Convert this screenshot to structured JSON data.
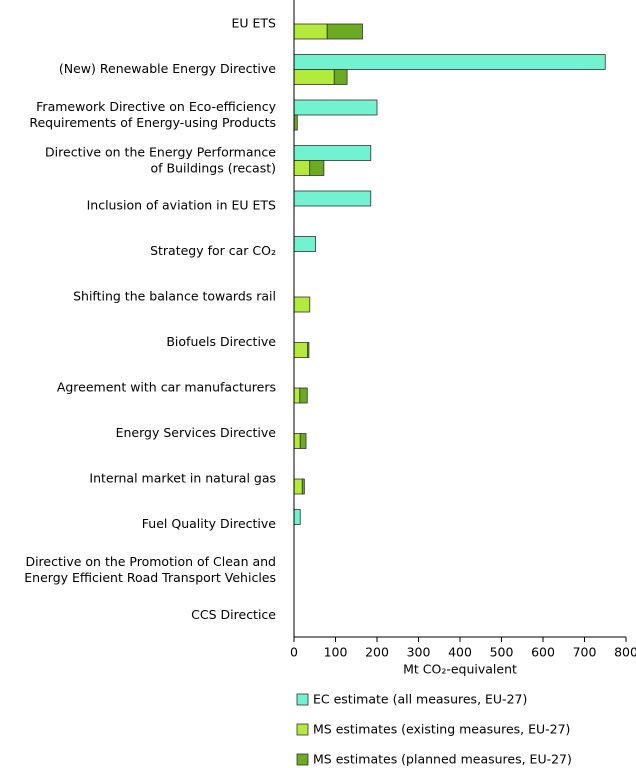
{
  "chart_data": {
    "type": "bar",
    "orientation": "horizontal",
    "categories": [
      "EU ETS",
      "(New) Renewable Energy Directive",
      "Framework Directive on Eco-efficiency\nRequirements of Energy-using Products",
      "Directive on the Energy Performance\nof Buildings (recast)",
      "Inclusion of aviation in EU ETS",
      "Strategy for car CO₂",
      "Shifting the balance towards rail",
      "Biofuels Directive",
      "Agreement with car manufacturers",
      "Energy Services Directive",
      "Internal market in natural gas",
      "Fuel Quality Directive",
      "Directive on the Promotion of Clean and\nEnergy Efficient Road Transport Vehicles",
      "CCS Directice"
    ],
    "series": [
      {
        "name": "EC estimate (all measures, EU-27)",
        "color": "#72f2cf",
        "group": "ec",
        "values": [
          null,
          750,
          200,
          185,
          185,
          52,
          null,
          null,
          null,
          null,
          null,
          15,
          null,
          null
        ]
      },
      {
        "name": "MS estimates (existing measures, EU-27)",
        "color": "#b3ea3c",
        "group": "ms",
        "values": [
          80,
          97,
          null,
          38,
          null,
          null,
          38,
          33,
          14,
          15,
          20,
          null,
          null,
          null
        ]
      },
      {
        "name": "MS estimates (planned measures, EU-27)",
        "color": "#6aab22",
        "group": "ms",
        "values": [
          85,
          31,
          8,
          34,
          null,
          null,
          null,
          3,
          18,
          14,
          5,
          null,
          null,
          null
        ]
      }
    ],
    "xlabel": "Mt CO₂-equivalent",
    "xlim": [
      0,
      800
    ],
    "xticks": [
      0,
      100,
      200,
      300,
      400,
      500,
      600,
      700,
      800
    ]
  }
}
